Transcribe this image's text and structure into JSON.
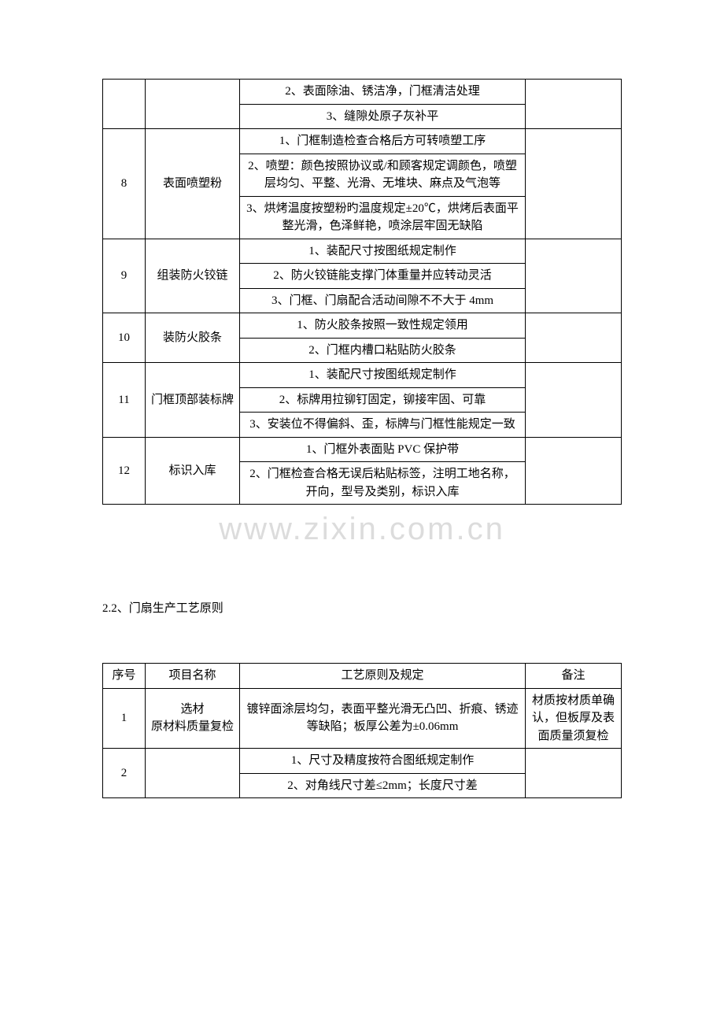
{
  "watermark": "www.zixin.com.cn",
  "table1": {
    "colWidths": {
      "seq": 54,
      "name": 120,
      "note": 122
    },
    "rows": [
      {
        "seq": "",
        "name": "",
        "items": [
          "2、表面除油、锈洁净，门框清洁处理",
          "3、缝隙处原子灰补平"
        ],
        "note": "",
        "showSeqName": false
      },
      {
        "seq": "8",
        "name": "表面喷塑粉",
        "items": [
          "1、门框制造检查合格后方可转喷塑工序",
          "2、喷塑：颜色按照协议或/和顾客规定调颜色，喷塑层均匀、平整、光滑、无堆块、麻点及气泡等",
          "3、烘烤温度按塑粉旳温度规定±20℃，烘烤后表面平整光滑，色泽鲜艳，喷涂层牢固无缺陷"
        ],
        "note": ""
      },
      {
        "seq": "9",
        "name": "组装防火铰链",
        "items": [
          "1、装配尺寸按图纸规定制作",
          "2、防火铰链能支撑门体重量并应转动灵活",
          "3、门框、门扇配合活动间隙不不大于 4mm"
        ],
        "note": ""
      },
      {
        "seq": "10",
        "name": "装防火胶条",
        "items": [
          "1、防火胶条按照一致性规定领用",
          "2、门框内槽口粘贴防火胶条"
        ],
        "note": ""
      },
      {
        "seq": "11",
        "name": "门框顶部装标牌",
        "items": [
          "1、装配尺寸按图纸规定制作",
          "2、标牌用拉铆钉固定，铆接牢固、可靠",
          "3、安装位不得偏斜、歪，标牌与门框性能规定一致"
        ],
        "note": ""
      },
      {
        "seq": "12",
        "name": "标识入库",
        "items": [
          "1、门框外表面贴 PVC 保护带",
          "2、门框检查合格无误后粘贴标签，注明工地名称，开向，型号及类别，标识入库"
        ],
        "note": ""
      }
    ]
  },
  "section2": {
    "title": "2.2、门扇生产工艺原则",
    "headers": {
      "seq": "序号",
      "name": "项目名称",
      "req": "工艺原则及规定",
      "note": "备注"
    },
    "rows": [
      {
        "seq": "1",
        "name": "选材\n原材料质量复检",
        "items": [
          "镀锌面涂层均匀，表面平整光滑无凸凹、折痕、锈迹等缺陷；板厚公差为±0.06mm"
        ],
        "note": "材质按材质单确认，但板厚及表面质量须复检"
      },
      {
        "seq": "2",
        "name": "",
        "items": [
          "1、尺寸及精度按符合图纸规定制作",
          "2、对角线尺寸差≤2mm；长度尺寸差"
        ],
        "note": ""
      }
    ]
  }
}
